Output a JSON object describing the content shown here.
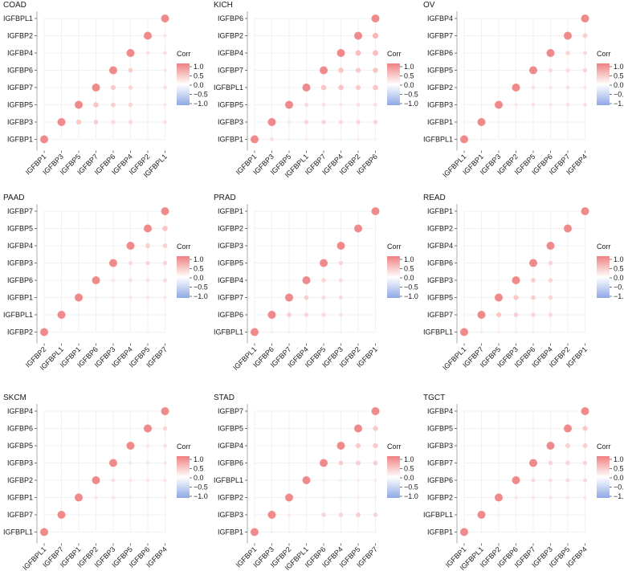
{
  "colors": {
    "positive": "#f08080",
    "neutral": "#ffffff",
    "negative": "#8fa8e6",
    "grid": "#ececec",
    "text": "#1a1a1a"
  },
  "legend": {
    "title": "Corr",
    "ticks": [
      "1.0",
      "0.5",
      "0.0",
      "−0.5",
      "−1.0"
    ],
    "range": [
      -1,
      1
    ]
  },
  "chart_data": [
    {
      "type": "heatmap",
      "title": "COAD",
      "genes": [
        "IGFBP1",
        "IGFBP3",
        "IGFBP5",
        "IGFBP7",
        "IGFBP6",
        "IGFBP4",
        "IGFBP2",
        "IGFBPL1"
      ],
      "matrix": [
        [
          1.0,
          0.05,
          0.05,
          0.05,
          0.05,
          0.05,
          0.05,
          0.05
        ],
        [
          0.05,
          1.0,
          0.45,
          0.4,
          0.3,
          0.3,
          0.15,
          0.25
        ],
        [
          0.05,
          0.45,
          1.0,
          0.5,
          0.4,
          0.35,
          0.15,
          0.2
        ],
        [
          0.05,
          0.4,
          0.5,
          1.0,
          0.45,
          0.35,
          0.15,
          0.25
        ],
        [
          0.05,
          0.3,
          0.4,
          0.45,
          1.0,
          0.4,
          0.1,
          0.2
        ],
        [
          0.05,
          0.3,
          0.35,
          0.35,
          0.4,
          1.0,
          0.25,
          0.25
        ],
        [
          0.05,
          0.15,
          0.15,
          0.15,
          0.1,
          0.25,
          1.0,
          0.2
        ],
        [
          0.05,
          0.25,
          0.2,
          0.25,
          0.2,
          0.25,
          0.2,
          1.0
        ]
      ]
    },
    {
      "type": "heatmap",
      "title": "KICH",
      "genes": [
        "IGFBP1",
        "IGFBP3",
        "IGFBP5",
        "IGFBPL1",
        "IGFBP7",
        "IGFBP4",
        "IGFBP2",
        "IGFBP6"
      ],
      "matrix": [
        [
          1.0,
          0.25,
          0.15,
          0.15,
          0.15,
          0.1,
          0.15,
          0.1
        ],
        [
          0.25,
          1.0,
          0.2,
          0.35,
          0.35,
          0.3,
          0.35,
          0.35
        ],
        [
          0.15,
          0.2,
          1.0,
          0.3,
          0.25,
          0.2,
          0.25,
          0.25
        ],
        [
          0.15,
          0.35,
          0.3,
          1.0,
          0.5,
          0.5,
          0.45,
          0.5
        ],
        [
          0.15,
          0.35,
          0.25,
          0.5,
          1.0,
          0.5,
          0.45,
          0.5
        ],
        [
          0.1,
          0.3,
          0.2,
          0.5,
          0.5,
          1.0,
          0.55,
          0.55
        ],
        [
          0.15,
          0.35,
          0.25,
          0.45,
          0.45,
          0.55,
          1.0,
          0.6
        ],
        [
          0.1,
          0.35,
          0.25,
          0.5,
          0.5,
          0.55,
          0.6,
          1.0
        ]
      ]
    },
    {
      "type": "heatmap",
      "title": "OV",
      "genes": [
        "IGFBPL1",
        "IGFBP1",
        "IGFBP3",
        "IGFBP2",
        "IGFBP5",
        "IGFBP6",
        "IGFBP7",
        "IGFBP4"
      ],
      "matrix": [
        [
          1.0,
          0.1,
          0.05,
          0.05,
          0.05,
          0.05,
          0.05,
          0.05
        ],
        [
          0.1,
          1.0,
          0.15,
          0.1,
          0.1,
          0.1,
          0.1,
          0.1
        ],
        [
          0.05,
          0.15,
          1.0,
          0.2,
          0.25,
          0.2,
          0.25,
          0.25
        ],
        [
          0.05,
          0.1,
          0.2,
          1.0,
          0.25,
          0.2,
          0.25,
          0.2
        ],
        [
          0.05,
          0.1,
          0.25,
          0.25,
          1.0,
          0.3,
          0.3,
          0.35
        ],
        [
          0.05,
          0.1,
          0.2,
          0.2,
          0.3,
          1.0,
          0.35,
          0.3
        ],
        [
          0.05,
          0.1,
          0.25,
          0.25,
          0.3,
          0.35,
          1.0,
          0.4
        ],
        [
          0.05,
          0.1,
          0.25,
          0.2,
          0.35,
          0.3,
          0.4,
          1.0
        ]
      ]
    },
    {
      "type": "heatmap",
      "title": "PAAD",
      "genes": [
        "IGFBP2",
        "IGFBPL1",
        "IGFBP1",
        "IGFBP6",
        "IGFBP3",
        "IGFBP4",
        "IGFBP5",
        "IGFBP7"
      ],
      "matrix": [
        [
          1.0,
          0.05,
          0.05,
          0.05,
          0.05,
          0.05,
          0.05,
          0.05
        ],
        [
          0.05,
          1.0,
          0.1,
          0.1,
          0.1,
          0.1,
          0.1,
          0.1
        ],
        [
          0.05,
          0.1,
          1.0,
          0.15,
          0.15,
          0.2,
          0.2,
          0.2
        ],
        [
          0.05,
          0.1,
          0.15,
          1.0,
          0.2,
          0.25,
          0.25,
          0.3
        ],
        [
          0.05,
          0.1,
          0.15,
          0.2,
          1.0,
          0.3,
          0.35,
          0.35
        ],
        [
          0.05,
          0.1,
          0.2,
          0.25,
          0.3,
          1.0,
          0.4,
          0.4
        ],
        [
          0.05,
          0.1,
          0.2,
          0.25,
          0.35,
          0.4,
          1.0,
          0.5
        ],
        [
          0.05,
          0.1,
          0.2,
          0.3,
          0.35,
          0.4,
          0.5,
          1.0
        ]
      ]
    },
    {
      "type": "heatmap",
      "title": "PRAD",
      "genes": [
        "IGFBPL1",
        "IGFBP6",
        "IGFBP7",
        "IGFBP4",
        "IGFBP5",
        "IGFBP3",
        "IGFBP2",
        "IGFBP1"
      ],
      "matrix": [
        [
          1.0,
          0.15,
          0.15,
          0.1,
          0.1,
          0.1,
          0.05,
          0.05
        ],
        [
          0.15,
          1.0,
          0.4,
          0.35,
          0.3,
          0.25,
          0.1,
          0.05
        ],
        [
          0.15,
          0.4,
          1.0,
          0.4,
          0.3,
          0.3,
          0.1,
          0.05
        ],
        [
          0.1,
          0.35,
          0.4,
          1.0,
          0.35,
          0.3,
          0.1,
          0.05
        ],
        [
          0.1,
          0.3,
          0.3,
          0.35,
          1.0,
          0.35,
          0.1,
          0.05
        ],
        [
          0.1,
          0.25,
          0.3,
          0.3,
          0.35,
          1.0,
          0.1,
          0.05
        ],
        [
          0.05,
          0.1,
          0.1,
          0.1,
          0.1,
          0.1,
          1.0,
          0.05
        ],
        [
          0.05,
          0.05,
          0.05,
          0.05,
          0.05,
          0.05,
          0.05,
          1.0
        ]
      ]
    },
    {
      "type": "heatmap",
      "title": "READ",
      "genes": [
        "IGFBPL1",
        "IGFBP7",
        "IGFBP5",
        "IGFBP3",
        "IGFBP6",
        "IGFBP4",
        "IGFBP2",
        "IGFBP1"
      ],
      "matrix": [
        [
          1.0,
          0.15,
          0.15,
          0.15,
          0.15,
          0.1,
          0.05,
          0.05
        ],
        [
          0.15,
          1.0,
          0.45,
          0.4,
          0.35,
          0.3,
          0.1,
          0.05
        ],
        [
          0.15,
          0.45,
          1.0,
          0.45,
          0.4,
          0.35,
          0.1,
          0.05
        ],
        [
          0.15,
          0.4,
          0.45,
          1.0,
          0.4,
          0.35,
          0.1,
          0.05
        ],
        [
          0.15,
          0.35,
          0.4,
          0.4,
          1.0,
          0.35,
          0.1,
          0.05
        ],
        [
          0.1,
          0.3,
          0.35,
          0.35,
          0.35,
          1.0,
          0.1,
          0.05
        ],
        [
          0.05,
          0.1,
          0.1,
          0.1,
          0.1,
          0.1,
          1.0,
          0.05
        ],
        [
          0.05,
          0.05,
          0.05,
          0.05,
          0.05,
          0.05,
          0.05,
          1.0
        ]
      ]
    },
    {
      "type": "heatmap",
      "title": "SKCM",
      "genes": [
        "IGFBPL1",
        "IGFBP7",
        "IGFBP1",
        "IGFBP2",
        "IGFBP3",
        "IGFBP5",
        "IGFBP6",
        "IGFBP4"
      ],
      "matrix": [
        [
          1.0,
          0.05,
          0.05,
          0.05,
          0.05,
          0.05,
          0.05,
          0.05
        ],
        [
          0.05,
          1.0,
          0.1,
          0.1,
          0.1,
          0.1,
          0.1,
          0.1
        ],
        [
          0.05,
          0.1,
          1.0,
          0.2,
          0.2,
          0.15,
          0.15,
          0.15
        ],
        [
          0.05,
          0.1,
          0.2,
          1.0,
          0.25,
          0.2,
          0.2,
          0.2
        ],
        [
          0.05,
          0.1,
          0.2,
          0.25,
          1.0,
          0.2,
          0.2,
          0.2
        ],
        [
          0.05,
          0.1,
          0.15,
          0.2,
          0.2,
          1.0,
          0.2,
          0.25
        ],
        [
          0.05,
          0.1,
          0.15,
          0.2,
          0.2,
          0.2,
          1.0,
          0.35
        ],
        [
          0.05,
          0.1,
          0.15,
          0.2,
          0.2,
          0.25,
          0.35,
          1.0
        ]
      ]
    },
    {
      "type": "heatmap",
      "title": "STAD",
      "genes": [
        "IGFBP1",
        "IGFBP3",
        "IGFBP2",
        "IGFBPL1",
        "IGFBP6",
        "IGFBP4",
        "IGFBP5",
        "IGFBP7"
      ],
      "matrix": [
        [
          1.0,
          0.15,
          0.1,
          0.05,
          0.1,
          0.1,
          0.1,
          0.1
        ],
        [
          0.15,
          1.0,
          0.2,
          0.1,
          0.35,
          0.35,
          0.4,
          0.35
        ],
        [
          0.1,
          0.2,
          1.0,
          0.1,
          0.15,
          0.15,
          0.15,
          0.15
        ],
        [
          0.05,
          0.1,
          0.1,
          1.0,
          0.15,
          0.15,
          0.15,
          0.15
        ],
        [
          0.1,
          0.35,
          0.15,
          0.15,
          1.0,
          0.4,
          0.4,
          0.4
        ],
        [
          0.1,
          0.35,
          0.15,
          0.15,
          0.4,
          1.0,
          0.45,
          0.45
        ],
        [
          0.1,
          0.4,
          0.15,
          0.15,
          0.4,
          0.45,
          1.0,
          0.45
        ],
        [
          0.1,
          0.35,
          0.15,
          0.15,
          0.4,
          0.45,
          0.45,
          1.0
        ]
      ]
    },
    {
      "type": "heatmap",
      "title": "TGCT",
      "genes": [
        "IGFBP1",
        "IGFBPL1",
        "IGFBP2",
        "IGFBP6",
        "IGFBP7",
        "IGFBP3",
        "IGFBP5",
        "IGFBP4"
      ],
      "matrix": [
        [
          1.0,
          0.1,
          0.05,
          0.05,
          0.05,
          0.05,
          0.05,
          0.05
        ],
        [
          0.1,
          1.0,
          0.15,
          0.1,
          0.1,
          0.1,
          0.1,
          0.1
        ],
        [
          0.05,
          0.15,
          1.0,
          0.2,
          0.2,
          0.2,
          0.2,
          0.2
        ],
        [
          0.05,
          0.1,
          0.2,
          1.0,
          0.3,
          0.25,
          0.3,
          0.3
        ],
        [
          0.05,
          0.1,
          0.2,
          0.3,
          1.0,
          0.35,
          0.35,
          0.35
        ],
        [
          0.05,
          0.1,
          0.2,
          0.25,
          0.35,
          1.0,
          0.4,
          0.4
        ],
        [
          0.05,
          0.1,
          0.2,
          0.3,
          0.35,
          0.4,
          1.0,
          0.45
        ],
        [
          0.05,
          0.1,
          0.2,
          0.3,
          0.35,
          0.4,
          0.45,
          1.0
        ]
      ]
    }
  ]
}
